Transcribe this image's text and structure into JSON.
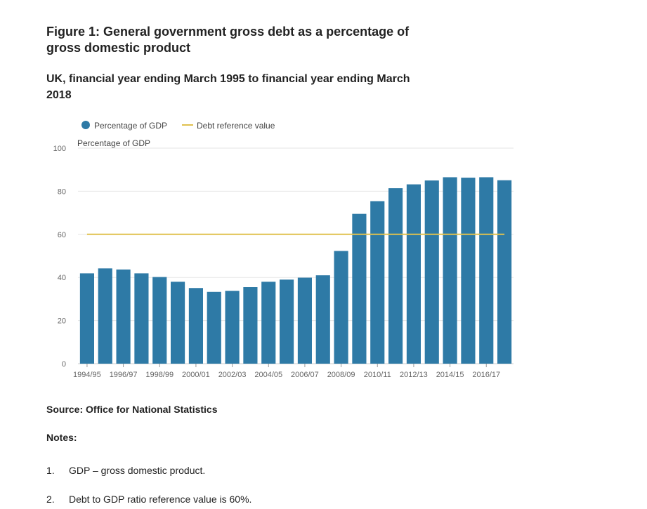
{
  "title": "Figure 1: General government gross debt as a percentage of gross domestic product",
  "subtitle": "UK, financial year ending March 1995 to financial year ending March 2018",
  "source": "Source: Office for National Statistics",
  "notes_heading": "Notes:",
  "notes": [
    {
      "num": "1.",
      "text": "GDP – gross domestic product."
    },
    {
      "num": "2.",
      "text": "Debt to GDP ratio reference value is 60%."
    }
  ],
  "colors": {
    "bar": "#2e7aa6",
    "reference": "#e0c14e",
    "grid": "#e6e6e6",
    "axis_text": "#666666"
  },
  "chart_data": {
    "type": "bar",
    "ylabel": "Percentage of GDP",
    "ylim": [
      0,
      100
    ],
    "yticks": [
      0,
      20,
      40,
      60,
      80,
      100
    ],
    "grid": true,
    "legend_position": "top",
    "legend": [
      {
        "label": "Percentage of GDP",
        "kind": "dot"
      },
      {
        "label": "Debt reference value",
        "kind": "line"
      }
    ],
    "categories": [
      "1994/95",
      "1995/96",
      "1996/97",
      "1997/98",
      "1998/99",
      "1999/00",
      "2000/01",
      "2001/02",
      "2002/03",
      "2003/04",
      "2004/05",
      "2005/06",
      "2006/07",
      "2007/08",
      "2008/09",
      "2009/10",
      "2010/11",
      "2011/12",
      "2012/13",
      "2013/14",
      "2014/15",
      "2015/16",
      "2016/17",
      "2017/18"
    ],
    "tick_labels": [
      "1994/95",
      "1996/97",
      "1998/99",
      "2000/01",
      "2002/03",
      "2004/05",
      "2006/07",
      "2008/09",
      "2010/11",
      "2012/13",
      "2014/15",
      "2016/17"
    ],
    "series": [
      {
        "name": "Percentage of GDP",
        "values": [
          41.9,
          44.2,
          43.7,
          41.9,
          40.2,
          38.0,
          35.1,
          33.3,
          33.8,
          35.5,
          38.0,
          39.0,
          39.9,
          41.0,
          52.3,
          69.5,
          75.4,
          81.4,
          83.2,
          85.0,
          86.5,
          86.3,
          86.5,
          85.1
        ]
      },
      {
        "name": "Debt reference value",
        "values": [
          60,
          60,
          60,
          60,
          60,
          60,
          60,
          60,
          60,
          60,
          60,
          60,
          60,
          60,
          60,
          60,
          60,
          60,
          60,
          60,
          60,
          60,
          60,
          60
        ]
      }
    ]
  }
}
